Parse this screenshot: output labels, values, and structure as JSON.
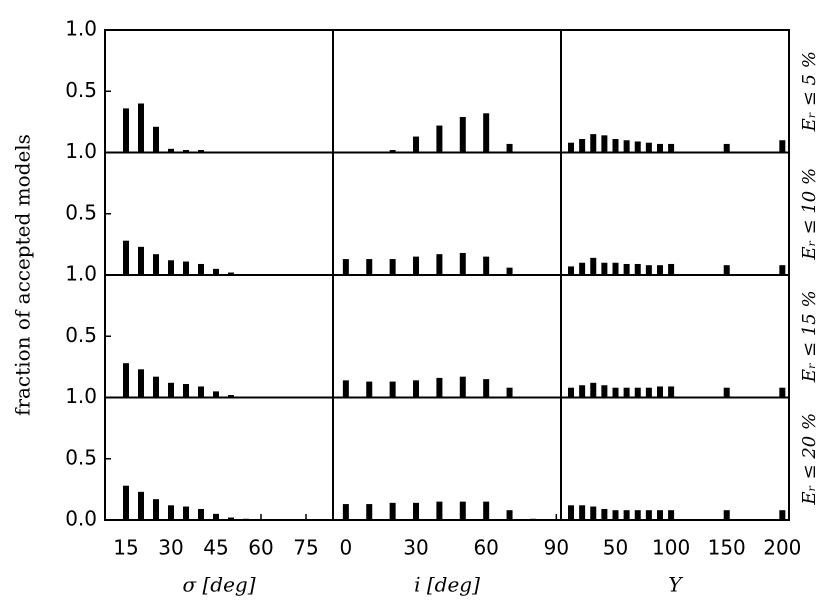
{
  "chart_data": [
    {
      "type": "bar",
      "ylabel": "fraction of accepted models",
      "x": [
        15,
        20,
        25,
        30,
        35,
        40,
        45,
        50,
        55
      ],
      "values": [
        0.36,
        0.4,
        0.21,
        0.03,
        0.02,
        0.02,
        0,
        0,
        0
      ],
      "xlim": [
        8,
        84
      ],
      "ylim": [
        0,
        1
      ],
      "yticks": [
        0.5,
        {
          "value": 1,
          "label": "1.0"
        }
      ],
      "color": "#000000"
    },
    {
      "type": "bar",
      "x": [
        0,
        10,
        20,
        30,
        40,
        50,
        60,
        70,
        80
      ],
      "values": [
        0,
        0,
        0.02,
        0.13,
        0.22,
        0.29,
        0.32,
        0.07,
        0
      ],
      "xlim": [
        -5.5,
        92
      ],
      "ylim": [
        0,
        1
      ],
      "color": "#000000"
    },
    {
      "type": "bar",
      "x": [
        10,
        20,
        30,
        40,
        50,
        60,
        70,
        80,
        90,
        100,
        150,
        200
      ],
      "values": [
        0.08,
        0.11,
        0.15,
        0.14,
        0.11,
        0.1,
        0.09,
        0.08,
        0.07,
        0.07,
        0.07,
        0.1
      ],
      "xlim": [
        1,
        206
      ],
      "ylim": [
        0,
        1
      ],
      "color": "#000000",
      "row_label": "Eᵣ ≤ 5 %"
    },
    {
      "type": "bar",
      "x": [
        15,
        20,
        25,
        30,
        35,
        40,
        45,
        50,
        55
      ],
      "values": [
        0.28,
        0.23,
        0.17,
        0.12,
        0.11,
        0.09,
        0.05,
        0.02,
        0
      ],
      "xlim": [
        8,
        84
      ],
      "ylim": [
        0,
        1
      ],
      "yticks": [
        0.5,
        {
          "value": 1,
          "label": "1.0"
        }
      ],
      "color": "#000000"
    },
    {
      "type": "bar",
      "x": [
        0,
        10,
        20,
        30,
        40,
        50,
        60,
        70,
        80
      ],
      "values": [
        0.13,
        0.13,
        0.13,
        0.15,
        0.17,
        0.18,
        0.15,
        0.06,
        0
      ],
      "xlim": [
        -5.5,
        92
      ],
      "ylim": [
        0,
        1
      ],
      "color": "#000000"
    },
    {
      "type": "bar",
      "x": [
        10,
        20,
        30,
        40,
        50,
        60,
        70,
        80,
        90,
        100,
        150,
        200
      ],
      "values": [
        0.07,
        0.1,
        0.14,
        0.1,
        0.1,
        0.09,
        0.09,
        0.08,
        0.08,
        0.09,
        0.08,
        0.08
      ],
      "xlim": [
        1,
        206
      ],
      "ylim": [
        0,
        1
      ],
      "color": "#000000",
      "row_label": "Eᵣ ≤ 10 %"
    },
    {
      "type": "bar",
      "x": [
        15,
        20,
        25,
        30,
        35,
        40,
        45,
        50,
        55
      ],
      "values": [
        0.28,
        0.23,
        0.17,
        0.12,
        0.11,
        0.09,
        0.05,
        0.02,
        0
      ],
      "xlim": [
        8,
        84
      ],
      "ylim": [
        0,
        1
      ],
      "yticks": [
        0.5,
        {
          "value": 1,
          "label": "1.0"
        }
      ],
      "color": "#000000"
    },
    {
      "type": "bar",
      "x": [
        0,
        10,
        20,
        30,
        40,
        50,
        60,
        70,
        80
      ],
      "values": [
        0.14,
        0.13,
        0.13,
        0.14,
        0.16,
        0.17,
        0.15,
        0.08,
        0
      ],
      "xlim": [
        -5.5,
        92
      ],
      "ylim": [
        0,
        1
      ],
      "color": "#000000"
    },
    {
      "type": "bar",
      "x": [
        10,
        20,
        30,
        40,
        50,
        60,
        70,
        80,
        90,
        100,
        150,
        200
      ],
      "values": [
        0.08,
        0.1,
        0.12,
        0.1,
        0.08,
        0.08,
        0.08,
        0.08,
        0.09,
        0.09,
        0.08,
        0.08
      ],
      "xlim": [
        1,
        206
      ],
      "ylim": [
        0,
        1
      ],
      "color": "#000000",
      "row_label": "Eᵣ ≤ 15 %"
    },
    {
      "type": "bar",
      "x": [
        15,
        20,
        25,
        30,
        35,
        40,
        45,
        50,
        55
      ],
      "values": [
        0.28,
        0.23,
        0.17,
        0.12,
        0.11,
        0.09,
        0.05,
        0.02,
        0.01
      ],
      "xlim": [
        8,
        84
      ],
      "ylim": [
        0,
        1
      ],
      "yticks": [
        {
          "value": 0,
          "label": "0.0"
        },
        0.5,
        {
          "value": 1,
          "label": "1.0"
        }
      ],
      "xticks": [
        15,
        30,
        45,
        60,
        75
      ],
      "xlabel": "σ [deg]",
      "color": "#000000"
    },
    {
      "type": "bar",
      "x": [
        0,
        10,
        20,
        30,
        40,
        50,
        60,
        70,
        80
      ],
      "values": [
        0.13,
        0.13,
        0.14,
        0.14,
        0.15,
        0.15,
        0.15,
        0.08,
        0.01
      ],
      "xlim": [
        -5.5,
        92
      ],
      "ylim": [
        0,
        1
      ],
      "xticks": [
        0,
        30,
        60,
        90
      ],
      "xlabel": "i [deg]",
      "color": "#000000"
    },
    {
      "type": "bar",
      "x": [
        10,
        20,
        30,
        40,
        50,
        60,
        70,
        80,
        90,
        100,
        150,
        200
      ],
      "values": [
        0.12,
        0.12,
        0.11,
        0.09,
        0.08,
        0.08,
        0.08,
        0.08,
        0.08,
        0.08,
        0.08,
        0.08
      ],
      "xlim": [
        1,
        206
      ],
      "ylim": [
        0,
        1
      ],
      "xticks": [
        50,
        100,
        150,
        200
      ],
      "xlabel": "Y",
      "color": "#000000",
      "row_label": "Eᵣ ≤ 20 %"
    }
  ]
}
